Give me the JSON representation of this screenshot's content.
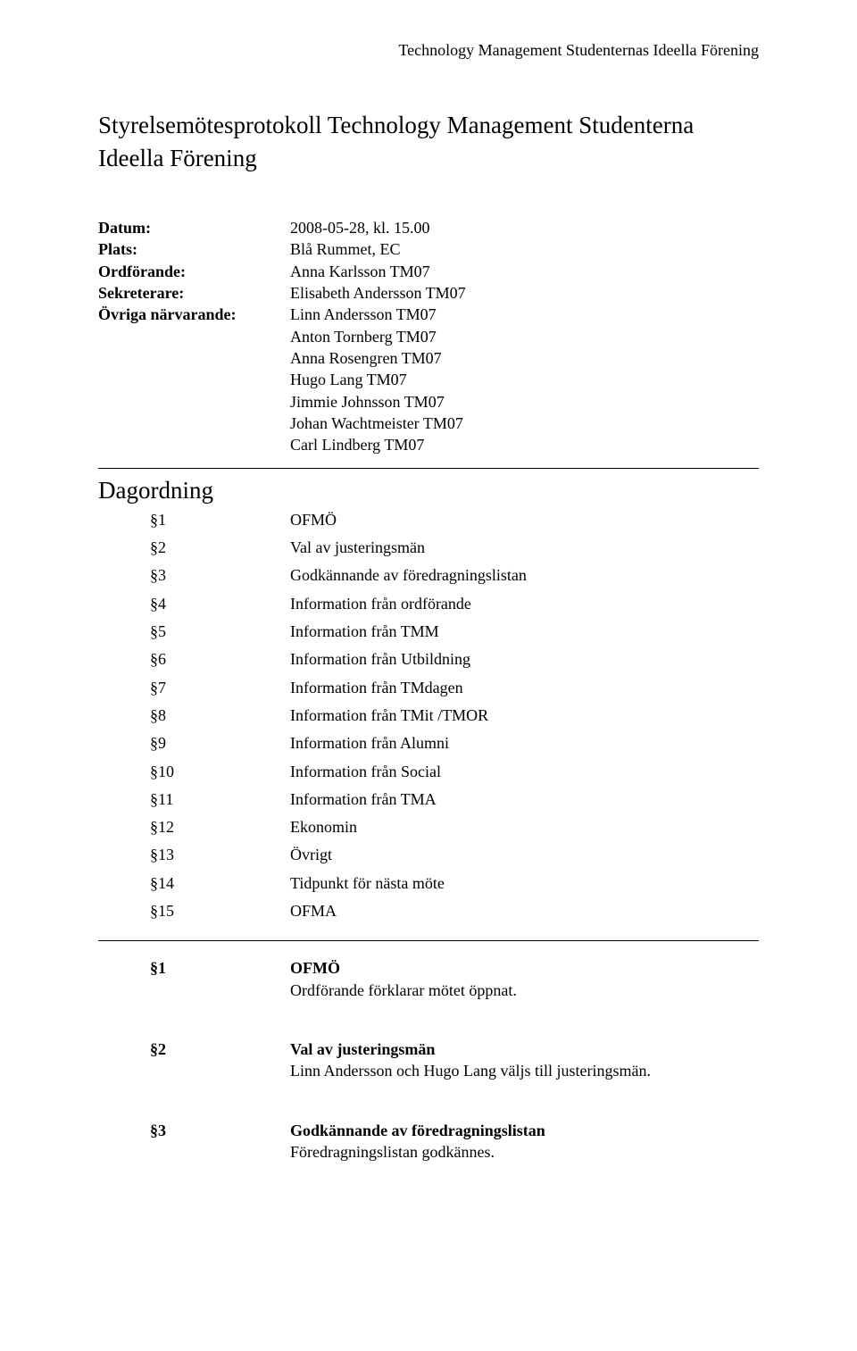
{
  "header": {
    "org": "Technology Management Studenternas Ideella Förening"
  },
  "title": "Styrelsemötesprotokoll Technology Management Studenterna Ideella Förening",
  "meta": {
    "labels": {
      "datum": "Datum:",
      "plats": "Plats:",
      "ordforande": "Ordförande:",
      "sekreterare": "Sekreterare:",
      "ovriga": "Övriga närvarande:"
    },
    "datum": "2008-05-28, kl. 15.00",
    "plats": "Blå Rummet, EC",
    "ordforande": "Anna Karlsson TM07",
    "sekreterare": "Elisabeth Andersson TM07",
    "ovriga": [
      "Linn Andersson TM07",
      "Anton Tornberg TM07",
      "Anna Rosengren TM07",
      "Hugo Lang TM07",
      "Jimmie Johnsson TM07",
      "Johan Wachtmeister TM07",
      "Carl Lindberg TM07"
    ]
  },
  "dagordning": {
    "heading": "Dagordning",
    "items": [
      {
        "n": "§1",
        "t": "OFMÖ"
      },
      {
        "n": "§2",
        "t": "Val av justeringsmän"
      },
      {
        "n": "§3",
        "t": "Godkännande av föredragningslistan"
      },
      {
        "n": "§4",
        "t": "Information från ordförande"
      },
      {
        "n": "§5",
        "t": "Information från TMM"
      },
      {
        "n": "§6",
        "t": "Information från Utbildning"
      },
      {
        "n": "§7",
        "t": "Information från TMdagen"
      },
      {
        "n": "§8",
        "t": "Information från TMit /TMOR"
      },
      {
        "n": "§9",
        "t": "Information från Alumni"
      },
      {
        "n": "§10",
        "t": "Information från Social"
      },
      {
        "n": "§11",
        "t": "Information från TMA"
      },
      {
        "n": "§12",
        "t": "Ekonomin"
      },
      {
        "n": "§13",
        "t": "Övrigt"
      },
      {
        "n": "§14",
        "t": "Tidpunkt för nästa möte"
      },
      {
        "n": "§15",
        "t": "OFMA"
      }
    ]
  },
  "body": {
    "sections": [
      {
        "n": "§1",
        "h": "OFMÖ",
        "b": "Ordförande förklarar mötet öppnat."
      },
      {
        "n": "§2",
        "h": "Val av justeringsmän",
        "b": "Linn Andersson och Hugo Lang väljs till justeringsmän."
      },
      {
        "n": "§3",
        "h": "Godkännande av föredragningslistan",
        "b": "Föredragningslistan godkännes."
      }
    ]
  }
}
